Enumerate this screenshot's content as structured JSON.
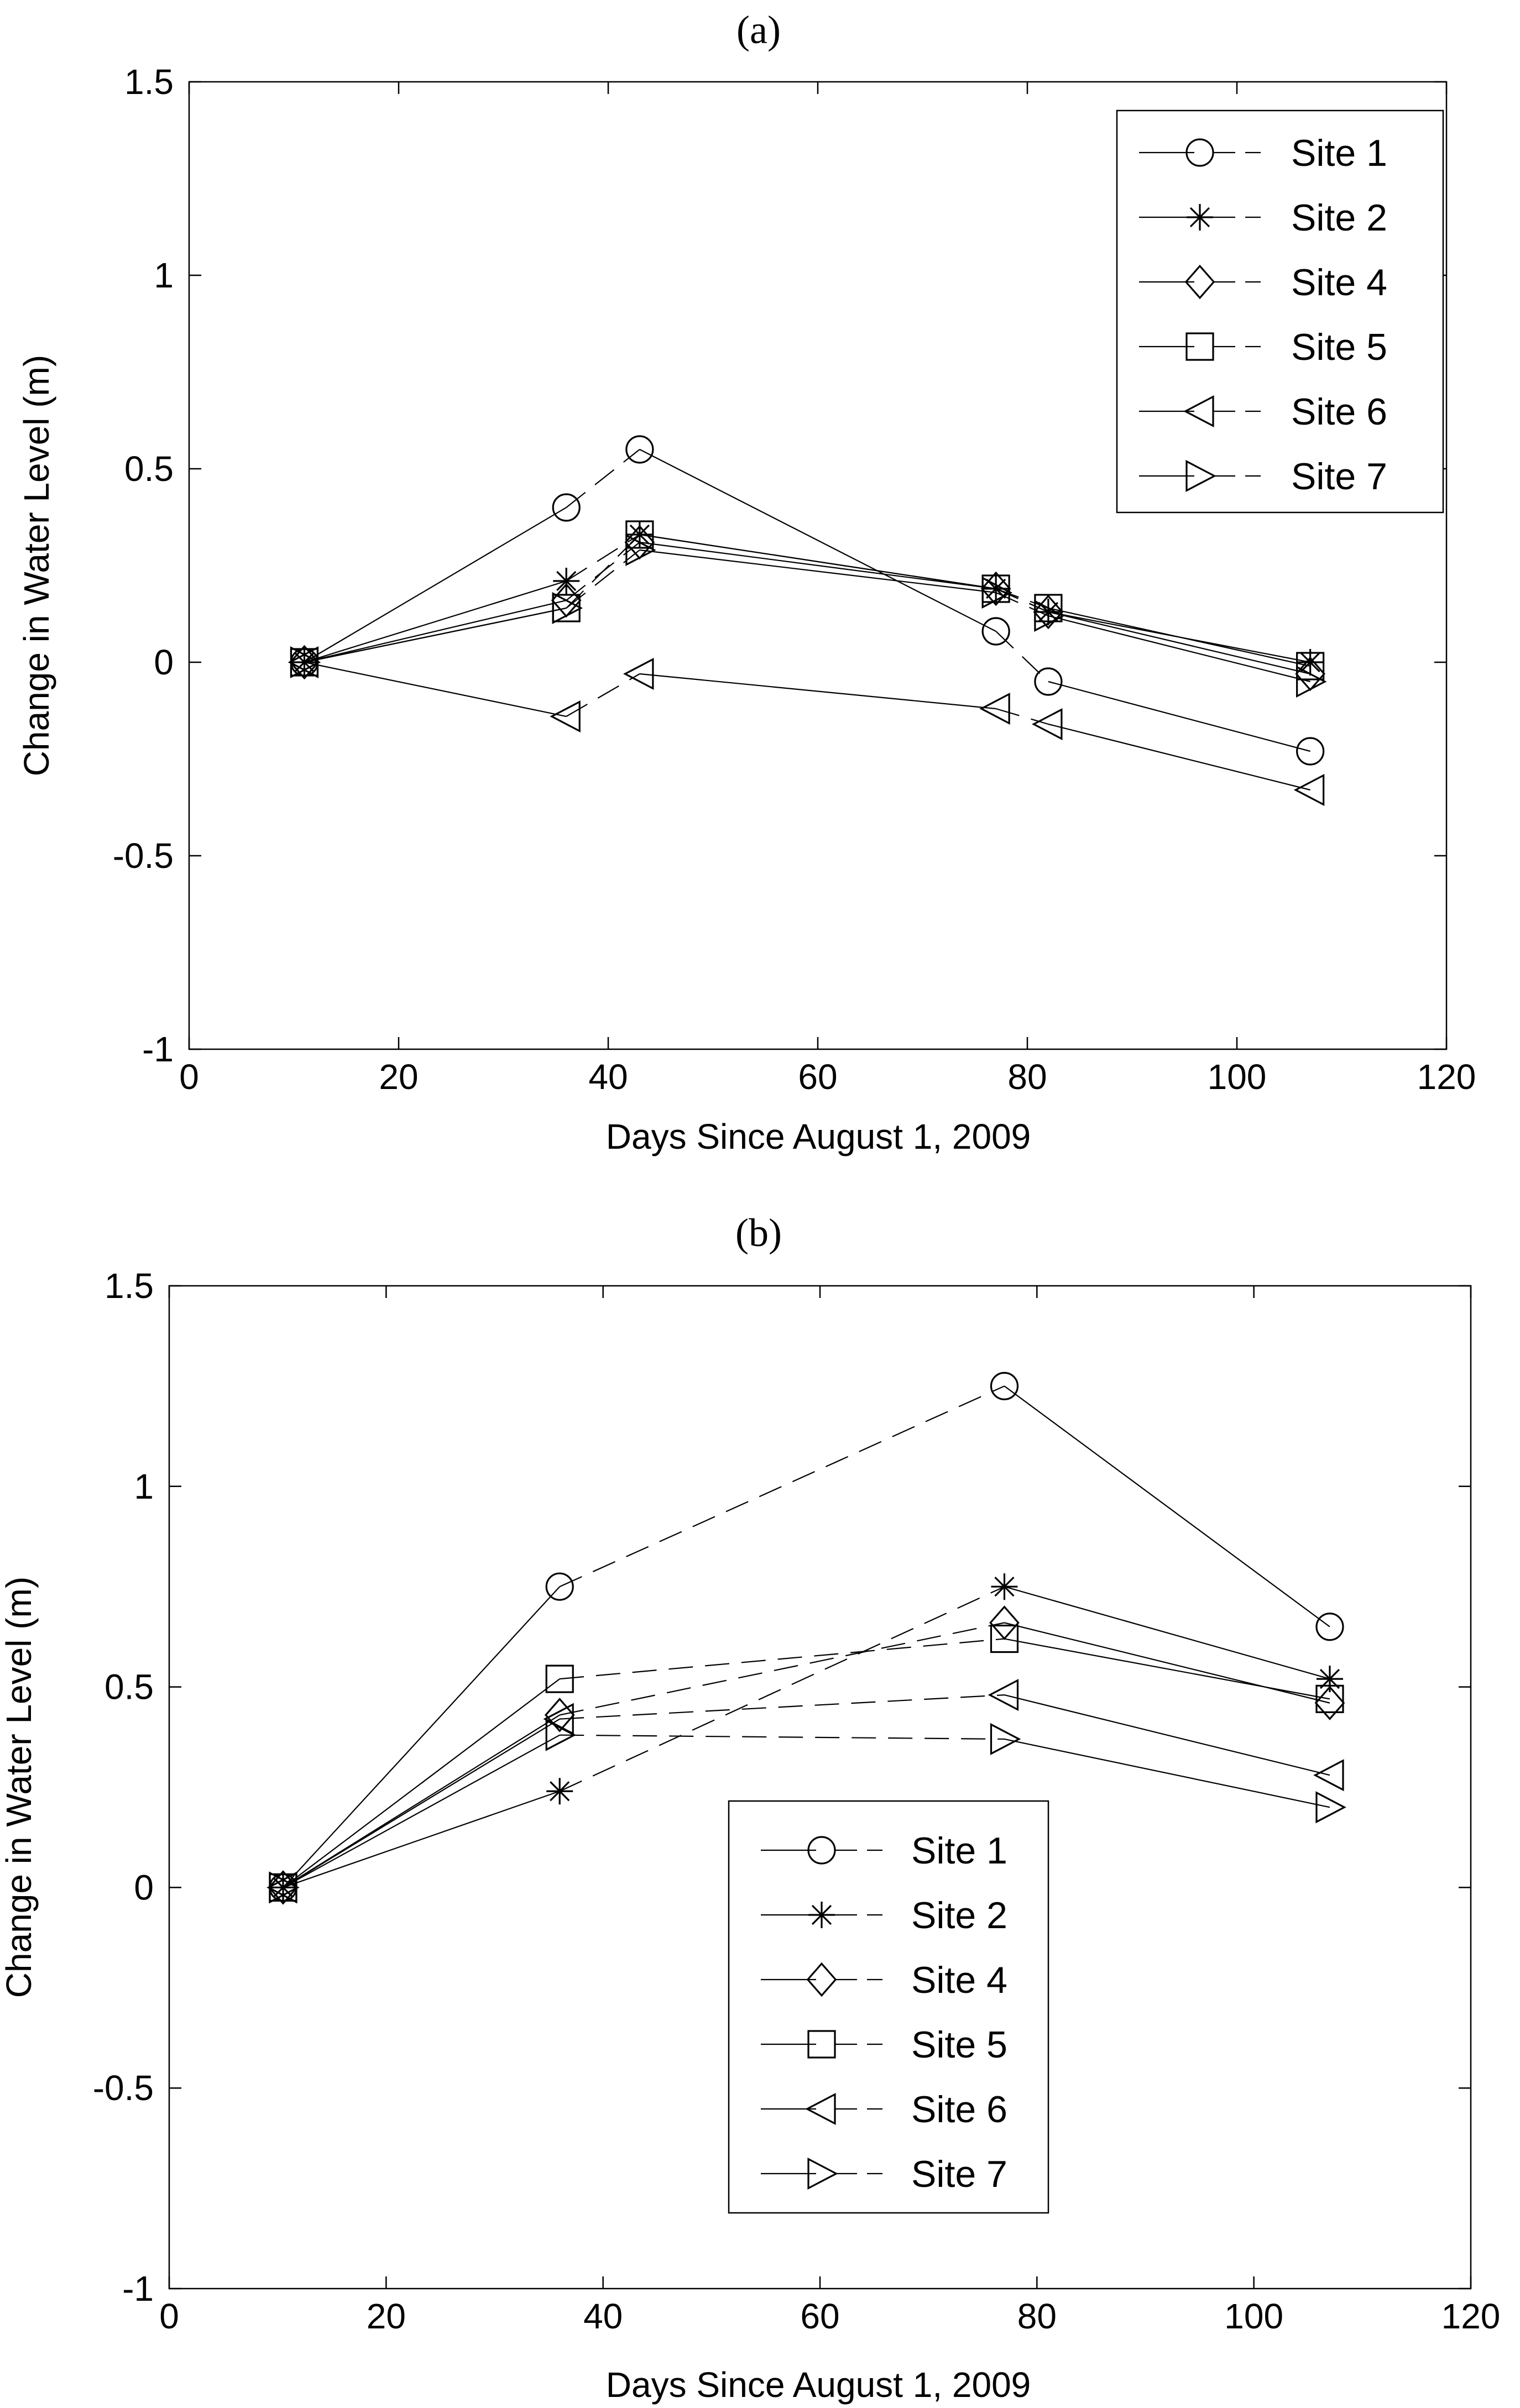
{
  "chart_data": [
    {
      "type": "line",
      "title": "(a)",
      "xlabel": "Days Since August 1, 2009",
      "ylabel": "Change in Water Level (m)",
      "xlim": [
        0,
        120
      ],
      "ylim": [
        -1,
        1.5
      ],
      "xticks": [
        "0",
        "20",
        "40",
        "60",
        "80",
        "100",
        "120"
      ],
      "yticks": [
        "-1",
        "-0.5",
        "0",
        "0.5",
        "1",
        "1.5"
      ],
      "legend_position": "top-right",
      "series": [
        {
          "name": "Site 1",
          "marker": "circle",
          "x": [
            11,
            36,
            43,
            77,
            82,
            107
          ],
          "y": [
            0,
            0.4,
            0.55,
            0.08,
            -0.05,
            -0.23
          ]
        },
        {
          "name": "Site 2",
          "marker": "asterisk",
          "x": [
            11,
            36,
            43,
            77,
            82,
            107
          ],
          "y": [
            0,
            0.21,
            0.33,
            0.19,
            0.13,
            0.0
          ]
        },
        {
          "name": "Site 4",
          "marker": "diamond",
          "x": [
            11,
            36,
            43,
            77,
            82,
            107
          ],
          "y": [
            0,
            0.16,
            0.31,
            0.19,
            0.13,
            -0.03
          ]
        },
        {
          "name": "Site 5",
          "marker": "square",
          "x": [
            11,
            36,
            43,
            77,
            82,
            107
          ],
          "y": [
            0,
            0.14,
            0.33,
            0.19,
            0.14,
            -0.01
          ]
        },
        {
          "name": "Site 6",
          "marker": "triangle-left",
          "x": [
            11,
            36,
            43,
            77,
            82,
            107
          ],
          "y": [
            0,
            -0.14,
            -0.03,
            -0.12,
            -0.16,
            -0.33
          ]
        },
        {
          "name": "Site 7",
          "marker": "triangle-right",
          "x": [
            11,
            36,
            43,
            77,
            82,
            107
          ],
          "y": [
            0,
            0.14,
            0.29,
            0.18,
            0.12,
            -0.05
          ]
        }
      ]
    },
    {
      "type": "line",
      "title": "(b)",
      "xlabel": "Days Since August 1, 2009",
      "ylabel": "Change in Water Level (m)",
      "xlim": [
        0,
        120
      ],
      "ylim": [
        -1,
        1.5
      ],
      "xticks": [
        "0",
        "20",
        "40",
        "60",
        "80",
        "100",
        "120"
      ],
      "yticks": [
        "-1",
        "-0.5",
        "0",
        "0.5",
        "1",
        "1.5"
      ],
      "legend_position": "bottom-center",
      "series": [
        {
          "name": "Site 1",
          "marker": "circle",
          "x": [
            10.5,
            36,
            77,
            107
          ],
          "y": [
            0,
            0.75,
            1.25,
            0.65
          ]
        },
        {
          "name": "Site 2",
          "marker": "asterisk",
          "x": [
            10.5,
            36,
            77,
            107
          ],
          "y": [
            0,
            0.24,
            0.75,
            0.52
          ]
        },
        {
          "name": "Site 4",
          "marker": "diamond",
          "x": [
            10.5,
            36,
            77,
            107
          ],
          "y": [
            0,
            0.43,
            0.66,
            0.46
          ]
        },
        {
          "name": "Site 5",
          "marker": "square",
          "x": [
            10.5,
            36,
            77,
            107
          ],
          "y": [
            0,
            0.52,
            0.62,
            0.47
          ]
        },
        {
          "name": "Site 6",
          "marker": "triangle-left",
          "x": [
            10.5,
            36,
            77,
            107
          ],
          "y": [
            0,
            0.42,
            0.48,
            0.28
          ]
        },
        {
          "name": "Site 7",
          "marker": "triangle-right",
          "x": [
            10.5,
            36,
            77,
            107
          ],
          "y": [
            0,
            0.38,
            0.37,
            0.2
          ]
        }
      ]
    }
  ]
}
